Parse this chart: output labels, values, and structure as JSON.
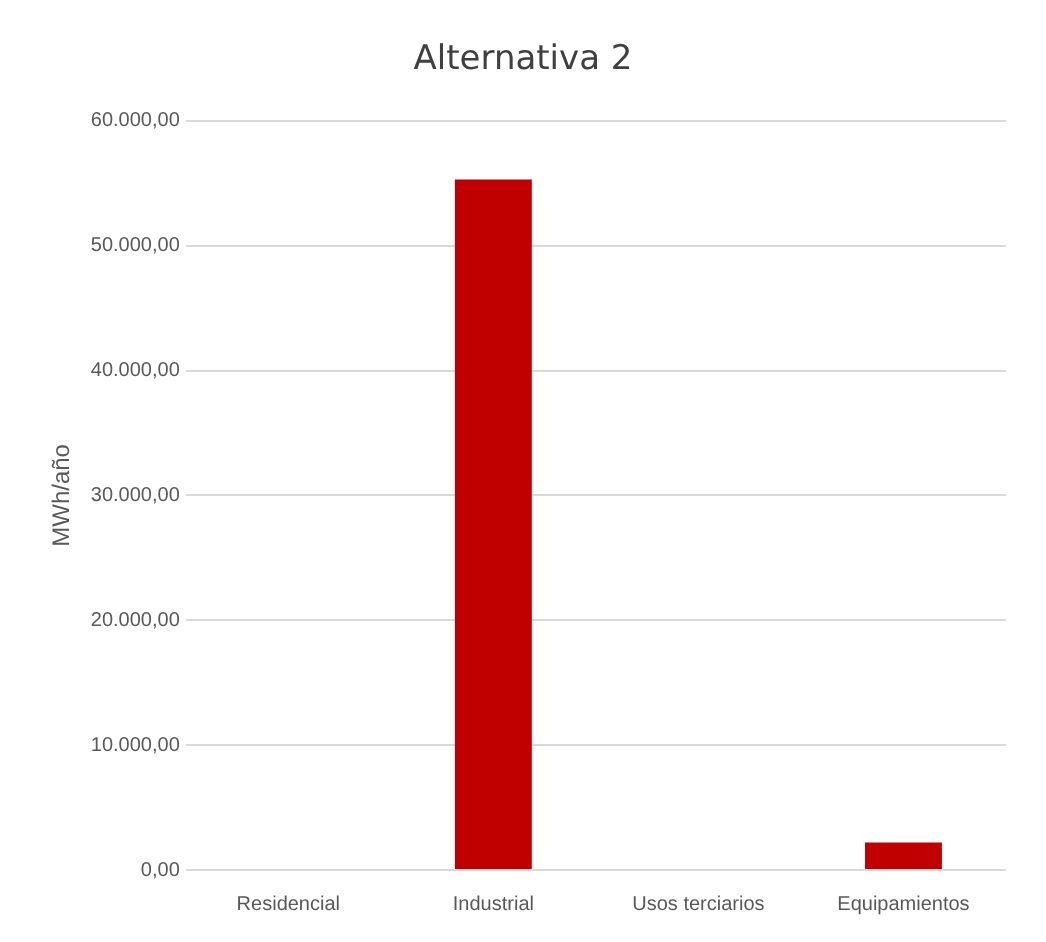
{
  "chart_data": {
    "type": "bar",
    "title": "Alternativa 2",
    "ylabel": "MWh/año",
    "categories": [
      "Residencial",
      "Industrial",
      "Usos terciarios",
      "Equipamientos"
    ],
    "values": [
      0,
      55300,
      0,
      2200
    ],
    "color": "#c00000",
    "ylim": [
      0,
      60000
    ],
    "yticks": [
      {
        "value": 0,
        "label": "0,00"
      },
      {
        "value": 10000,
        "label": "10.000,00"
      },
      {
        "value": 20000,
        "label": "20.000,00"
      },
      {
        "value": 30000,
        "label": "30.000,00"
      },
      {
        "value": 40000,
        "label": "40.000,00"
      },
      {
        "value": 50000,
        "label": "50.000,00"
      },
      {
        "value": 60000,
        "label": "60.000,00"
      }
    ],
    "grid": "y",
    "legend": false
  }
}
